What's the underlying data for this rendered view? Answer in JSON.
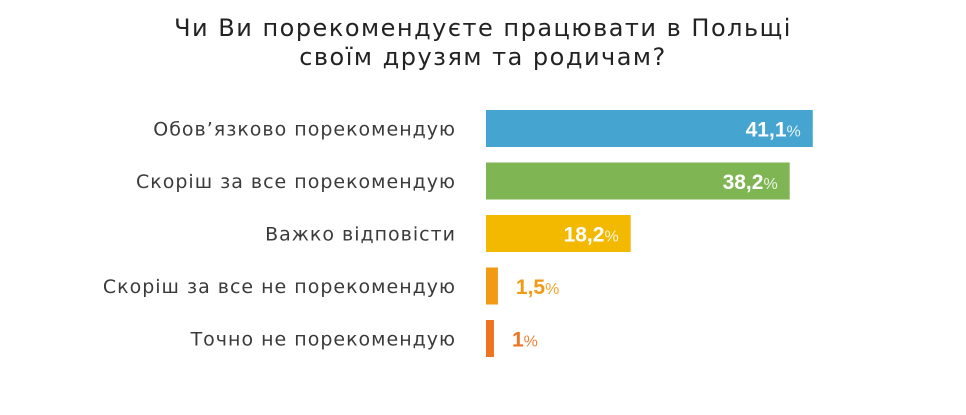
{
  "chart_data": {
    "type": "bar",
    "orientation": "horizontal",
    "title": [
      "Чи Ви порекомендуєте працювати в Польщі",
      "своїм друзям та родичам?"
    ],
    "categories": [
      "Обов’язково порекомендую",
      "Скоріш за все порекомендую",
      "Важко відповісти",
      "Скоріш за все не порекомендую",
      "Точно не порекомендую"
    ],
    "values": [
      41.1,
      38.2,
      18.2,
      1.5,
      1
    ],
    "value_labels": [
      "41,1",
      "38,2",
      "18,2",
      "1,5",
      "1"
    ],
    "unit": "%",
    "colors": [
      "#45a5d0",
      "#7fb553",
      "#f3b800",
      "#f39a14",
      "#ee7422"
    ],
    "grid": false,
    "legend": "none"
  }
}
